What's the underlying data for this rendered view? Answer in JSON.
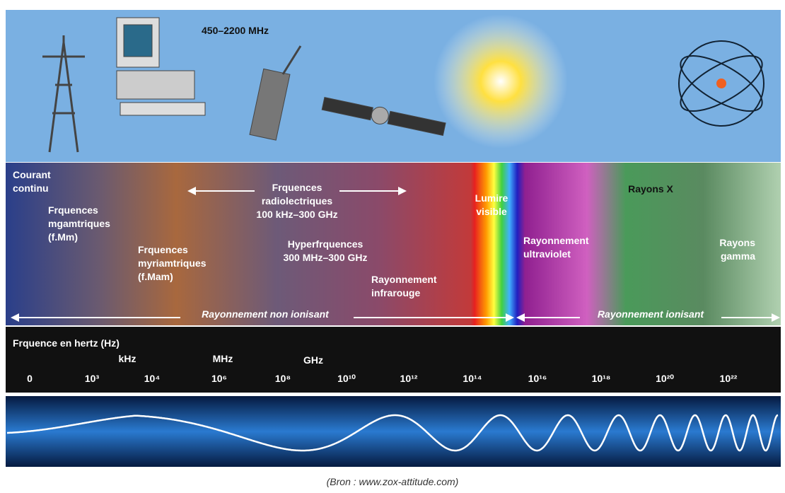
{
  "top": {
    "frequency_note": "450–2200 MHz"
  },
  "regions": [
    {
      "lines": [
        "Courant",
        "continu"
      ]
    },
    {
      "lines": [
        "Frquences",
        "mgamtriques",
        "(f.Mm)"
      ]
    },
    {
      "lines": [
        "Frquences",
        "myriamtriques",
        "(f.Mam)"
      ]
    },
    {
      "lines": [
        "Frquences",
        "radiolectriques",
        "100  kHz–300  GHz"
      ]
    },
    {
      "lines": [
        "Hyperfrquences",
        "300  MHz–300  GHz"
      ]
    },
    {
      "lines": [
        "Rayonnement",
        "infrarouge"
      ]
    },
    {
      "lines": [
        "Lumire",
        "visible"
      ]
    },
    {
      "lines": [
        "Rayonnement",
        "ultraviolet"
      ]
    },
    {
      "lines": [
        "Rayons  X"
      ]
    },
    {
      "lines": [
        "Rayons",
        "gamma"
      ]
    }
  ],
  "ionisation": {
    "non_ionising": "Rayonnement  non  ionisant",
    "ionising": "Rayonnement  ionisant"
  },
  "scale": {
    "title": "Frquence  en  hertz  (Hz)",
    "units": [
      "kHz",
      "MHz",
      "GHz"
    ],
    "ticks": [
      "0",
      "10³",
      "10⁴",
      "10⁶",
      "10⁸",
      "10¹⁰",
      "10¹²",
      "10¹⁴",
      "10¹⁶",
      "10¹⁸",
      "10²⁰",
      "10²²"
    ]
  },
  "caption": "(Bron : www.zox-attitude.com)"
}
